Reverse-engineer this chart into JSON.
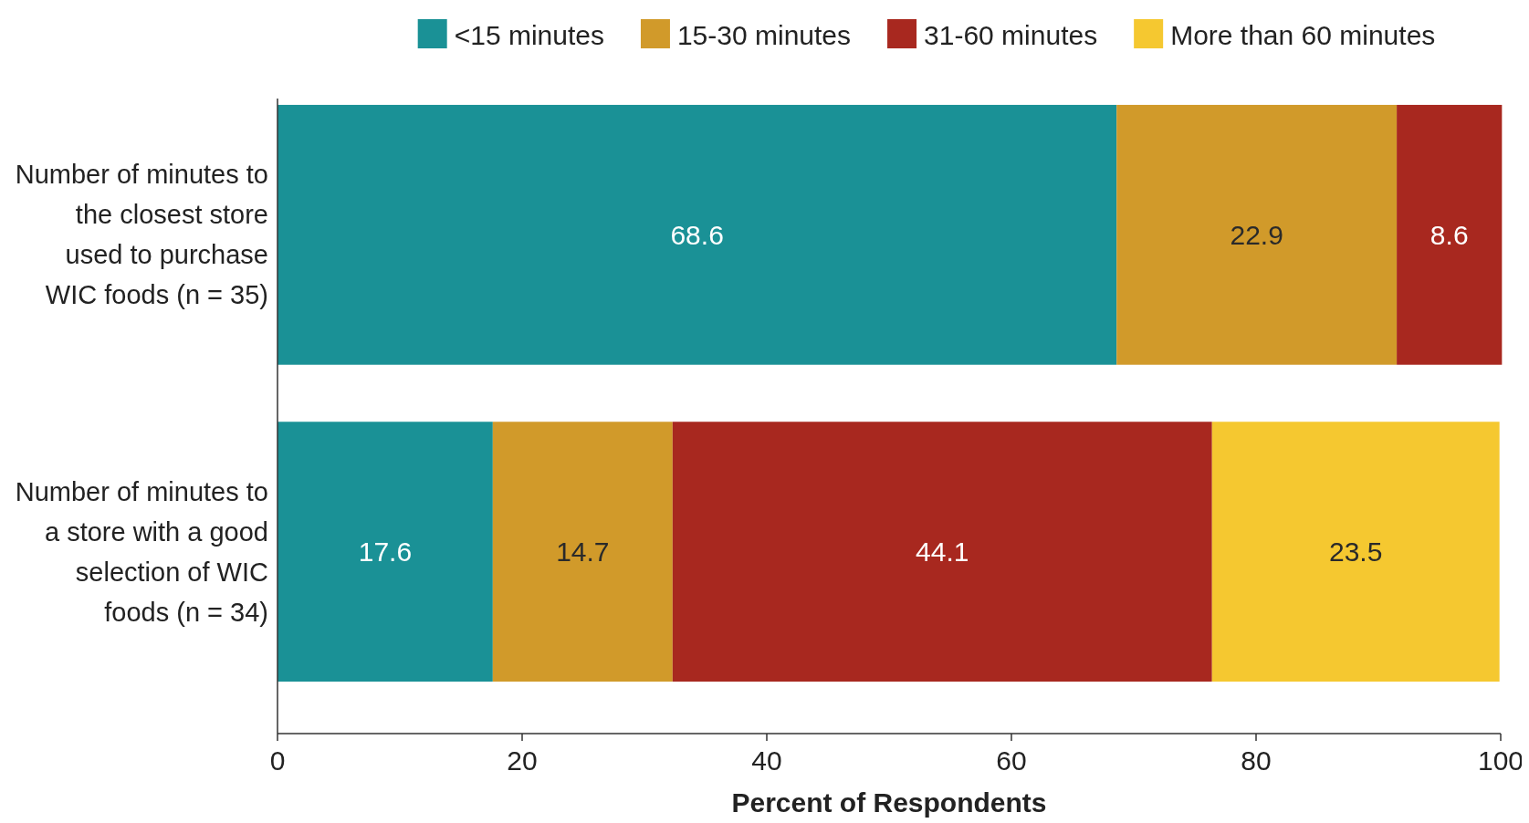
{
  "chart_data": {
    "type": "bar",
    "orientation": "horizontal",
    "stacked": true,
    "xlabel": "Percent of Respondents",
    "categories": [
      "Number of minutes to the closest store used to purchase WIC foods (n = 35)",
      "Number of minutes to a store with a good selection of WIC foods (n = 34)"
    ],
    "series": [
      {
        "name": "<15 minutes",
        "color": "#1a9196",
        "values": [
          68.6,
          17.6
        ]
      },
      {
        "name": "15-30 minutes",
        "color": "#d19a2a",
        "values": [
          22.9,
          14.7
        ]
      },
      {
        "name": "31-60 minutes",
        "color": "#a8281f",
        "values": [
          8.6,
          44.1
        ]
      },
      {
        "name": "More than 60 minutes",
        "color": "#f5c830",
        "values": [
          null,
          23.5
        ]
      }
    ],
    "xlim": [
      0,
      100
    ],
    "xticks": [
      0,
      20,
      40,
      60,
      80,
      100
    ],
    "data_labels": true,
    "legend": "top",
    "grid": false
  }
}
